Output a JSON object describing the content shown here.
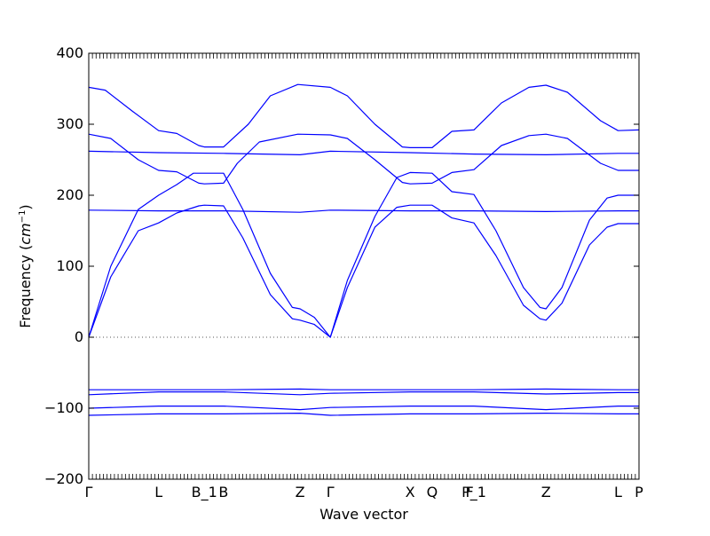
{
  "chart_data": {
    "type": "line",
    "xlabel": "Wave vector",
    "ylabel_main": "Frequency (",
    "ylabel_unit": "cm",
    "ylabel_exp": "−1",
    "ylabel_close": ")",
    "ylim": [
      -200,
      400
    ],
    "yticks": [
      -200,
      -100,
      0,
      100,
      200,
      300,
      400
    ],
    "ytick_labels": [
      "−200",
      "−100",
      "0",
      "100",
      "200",
      "300",
      "400"
    ],
    "xlim": [
      0,
      1
    ],
    "grid": false,
    "line_color": "#0000ff",
    "zero_line": {
      "y": 0,
      "style": "dotted",
      "color": "#555555"
    },
    "high_symmetry_points": [
      {
        "label": "Γ",
        "x": 0.0
      },
      {
        "label": "L",
        "x": 0.127
      },
      {
        "label": "B_1",
        "x": 0.21
      },
      {
        "label": "B",
        "x": 0.245
      },
      {
        "label": "Z",
        "x": 0.384
      },
      {
        "label": "Γ",
        "x": 0.439
      },
      {
        "label": "X",
        "x": 0.584
      },
      {
        "label": "Q",
        "x": 0.624
      },
      {
        "label": "F",
        "x": 0.692
      },
      {
        "label": "P_1",
        "x": 0.7
      },
      {
        "label": "Z",
        "x": 0.831
      },
      {
        "label": "L",
        "x": 0.962
      },
      {
        "label": "P",
        "x": 1.0
      }
    ],
    "series": [
      {
        "points": [
          [
            0,
            352
          ],
          [
            0.03,
            348
          ],
          [
            0.08,
            318
          ],
          [
            0.127,
            291
          ],
          [
            0.16,
            287
          ],
          [
            0.2,
            270
          ],
          [
            0.21,
            268
          ],
          [
            0.245,
            268
          ],
          [
            0.29,
            300
          ],
          [
            0.33,
            340
          ],
          [
            0.38,
            356
          ],
          [
            0.439,
            352
          ],
          [
            0.47,
            340
          ],
          [
            0.52,
            300
          ],
          [
            0.57,
            268
          ],
          [
            0.584,
            267
          ],
          [
            0.624,
            267
          ],
          [
            0.66,
            290
          ],
          [
            0.7,
            292
          ],
          [
            0.75,
            330
          ],
          [
            0.8,
            352
          ],
          [
            0.831,
            355
          ],
          [
            0.87,
            345
          ],
          [
            0.93,
            305
          ],
          [
            0.962,
            291
          ],
          [
            1.0,
            292
          ]
        ]
      },
      {
        "points": [
          [
            0,
            286
          ],
          [
            0.04,
            280
          ],
          [
            0.09,
            250
          ],
          [
            0.127,
            235
          ],
          [
            0.16,
            233
          ],
          [
            0.2,
            217
          ],
          [
            0.21,
            216
          ],
          [
            0.245,
            217
          ],
          [
            0.27,
            245
          ],
          [
            0.31,
            275
          ],
          [
            0.38,
            286
          ],
          [
            0.439,
            285
          ],
          [
            0.47,
            280
          ],
          [
            0.52,
            250
          ],
          [
            0.57,
            218
          ],
          [
            0.584,
            216
          ],
          [
            0.624,
            217
          ],
          [
            0.66,
            232
          ],
          [
            0.7,
            236
          ],
          [
            0.75,
            270
          ],
          [
            0.8,
            284
          ],
          [
            0.831,
            286
          ],
          [
            0.87,
            280
          ],
          [
            0.93,
            245
          ],
          [
            0.962,
            235
          ],
          [
            1.0,
            235
          ]
        ]
      },
      {
        "points": [
          [
            0,
            262
          ],
          [
            0.127,
            260
          ],
          [
            0.245,
            259
          ],
          [
            0.384,
            257
          ],
          [
            0.439,
            262
          ],
          [
            0.584,
            260
          ],
          [
            0.7,
            258
          ],
          [
            0.831,
            257
          ],
          [
            0.962,
            259
          ],
          [
            1.0,
            259
          ]
        ]
      },
      {
        "points": [
          [
            0,
            0
          ],
          [
            0.04,
            100
          ],
          [
            0.09,
            180
          ],
          [
            0.127,
            200
          ],
          [
            0.16,
            215
          ],
          [
            0.19,
            231
          ],
          [
            0.21,
            231
          ],
          [
            0.245,
            231
          ],
          [
            0.28,
            180
          ],
          [
            0.33,
            90
          ],
          [
            0.37,
            42
          ],
          [
            0.384,
            40
          ],
          [
            0.41,
            28
          ],
          [
            0.439,
            0
          ],
          [
            0.47,
            80
          ],
          [
            0.52,
            170
          ],
          [
            0.56,
            225
          ],
          [
            0.584,
            232
          ],
          [
            0.624,
            231
          ],
          [
            0.66,
            205
          ],
          [
            0.7,
            201
          ],
          [
            0.74,
            150
          ],
          [
            0.79,
            70
          ],
          [
            0.82,
            42
          ],
          [
            0.831,
            40
          ],
          [
            0.86,
            70
          ],
          [
            0.91,
            165
          ],
          [
            0.942,
            196
          ],
          [
            0.962,
            200
          ],
          [
            1.0,
            200
          ]
        ]
      },
      {
        "points": [
          [
            0,
            0
          ],
          [
            0.04,
            85
          ],
          [
            0.09,
            150
          ],
          [
            0.127,
            161
          ],
          [
            0.16,
            175
          ],
          [
            0.2,
            185
          ],
          [
            0.21,
            186
          ],
          [
            0.245,
            185
          ],
          [
            0.28,
            140
          ],
          [
            0.33,
            60
          ],
          [
            0.37,
            26
          ],
          [
            0.384,
            24
          ],
          [
            0.41,
            18
          ],
          [
            0.439,
            0
          ],
          [
            0.47,
            70
          ],
          [
            0.52,
            155
          ],
          [
            0.56,
            183
          ],
          [
            0.584,
            186
          ],
          [
            0.624,
            186
          ],
          [
            0.66,
            168
          ],
          [
            0.7,
            161
          ],
          [
            0.74,
            115
          ],
          [
            0.79,
            45
          ],
          [
            0.82,
            26
          ],
          [
            0.831,
            24
          ],
          [
            0.86,
            48
          ],
          [
            0.91,
            130
          ],
          [
            0.942,
            155
          ],
          [
            0.962,
            160
          ],
          [
            1.0,
            160
          ]
        ]
      },
      {
        "points": [
          [
            0,
            179
          ],
          [
            0.127,
            178
          ],
          [
            0.245,
            178
          ],
          [
            0.384,
            176
          ],
          [
            0.439,
            179
          ],
          [
            0.584,
            178
          ],
          [
            0.7,
            178
          ],
          [
            0.831,
            177
          ],
          [
            0.962,
            178
          ],
          [
            1.0,
            178
          ]
        ]
      },
      {
        "points": [
          [
            0,
            -74
          ],
          [
            0.127,
            -74
          ],
          [
            0.245,
            -74
          ],
          [
            0.384,
            -73
          ],
          [
            0.439,
            -74
          ],
          [
            0.584,
            -74
          ],
          [
            0.7,
            -74
          ],
          [
            0.831,
            -73
          ],
          [
            0.962,
            -74
          ],
          [
            1.0,
            -74
          ]
        ]
      },
      {
        "points": [
          [
            0,
            -81
          ],
          [
            0.127,
            -77
          ],
          [
            0.245,
            -77
          ],
          [
            0.384,
            -81
          ],
          [
            0.439,
            -79
          ],
          [
            0.584,
            -77
          ],
          [
            0.7,
            -77
          ],
          [
            0.831,
            -80
          ],
          [
            0.962,
            -78
          ],
          [
            1.0,
            -78
          ]
        ]
      },
      {
        "points": [
          [
            0,
            -100
          ],
          [
            0.127,
            -97
          ],
          [
            0.245,
            -97
          ],
          [
            0.384,
            -102
          ],
          [
            0.439,
            -99
          ],
          [
            0.584,
            -97
          ],
          [
            0.7,
            -97
          ],
          [
            0.831,
            -102
          ],
          [
            0.962,
            -97
          ],
          [
            1.0,
            -97
          ]
        ]
      },
      {
        "points": [
          [
            0,
            -110
          ],
          [
            0.127,
            -108
          ],
          [
            0.245,
            -108
          ],
          [
            0.384,
            -107
          ],
          [
            0.439,
            -110
          ],
          [
            0.584,
            -108
          ],
          [
            0.7,
            -108
          ],
          [
            0.831,
            -107
          ],
          [
            0.962,
            -108
          ],
          [
            1.0,
            -108
          ]
        ]
      }
    ]
  }
}
